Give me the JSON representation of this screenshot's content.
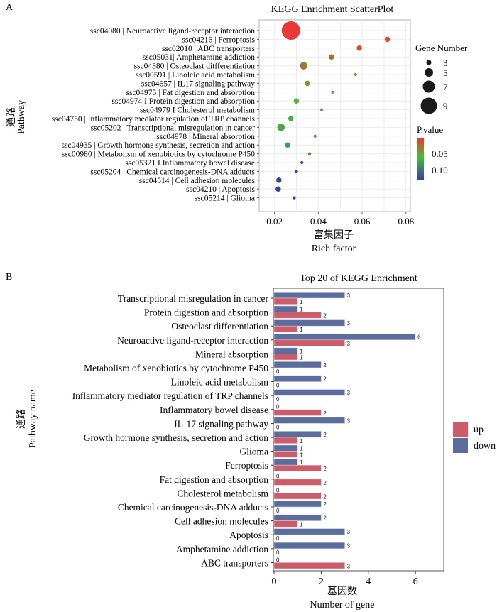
{
  "panels": {
    "a_label": "A",
    "b_label": "B"
  },
  "chart_data": [
    {
      "type": "scatter",
      "title": "KEGG Enrichment ScatterPlot",
      "xlabel_cn": "富集因子",
      "xlabel": "Rich factor",
      "ylabel_cn": "通路",
      "ylabel": "Pathway",
      "xlim": [
        0.013,
        0.082
      ],
      "xticks": [
        0.02,
        0.04,
        0.06,
        0.08
      ],
      "xtick_labels": [
        "0.02",
        "0.04",
        "0.06",
        "0.08"
      ],
      "grid": true,
      "legend_position": "right",
      "size_legend": {
        "title": "Gene Number",
        "values": [
          3,
          5,
          7,
          9
        ],
        "labels": [
          "3",
          "5",
          "7",
          "9"
        ]
      },
      "color_legend": {
        "title": "P.value",
        "labels": [
          "0.05",
          "0.10"
        ],
        "values": [
          0.05,
          0.1
        ],
        "low_color": "#e8383a",
        "mid_color": "#4cb83a",
        "high_color": "#3a3f9a"
      },
      "points": [
        {
          "pathway": "ssc04080 | Neuroactive ligand-receptor interaction",
          "rich_factor": 0.0275,
          "gene_number": 9,
          "pvalue": 0.005
        },
        {
          "pathway": "ssc04216 | Ferroptosis",
          "rich_factor": 0.0715,
          "gene_number": 3,
          "pvalue": 0.01
        },
        {
          "pathway": "ssc02010 | ABC transporters",
          "rich_factor": 0.0587,
          "gene_number": 3,
          "pvalue": 0.015
        },
        {
          "pathway": "ssc05031| Amphetamine addiction",
          "rich_factor": 0.046,
          "gene_number": 3,
          "pvalue": 0.03
        },
        {
          "pathway": "ssc04380 | Osteoclast ditfferentiation",
          "rich_factor": 0.0333,
          "gene_number": 4,
          "pvalue": 0.032
        },
        {
          "pathway": "ssc00591 | Linoleic acid metabolism",
          "rich_factor": 0.057,
          "gene_number": 2,
          "pvalue": 0.045
        },
        {
          "pathway": "ssc04657 | IL17 signaling pathway",
          "rich_factor": 0.035,
          "gene_number": 3,
          "pvalue": 0.048
        },
        {
          "pathway": "ssc04975 | Fat digestion and absorption",
          "rich_factor": 0.0465,
          "gene_number": 2,
          "pvalue": 0.058
        },
        {
          "pathway": "ssc04974 I Protein digestion and absorption",
          "rich_factor": 0.03,
          "gene_number": 3,
          "pvalue": 0.06
        },
        {
          "pathway": "ssc04979 I Cholesterol metabolism",
          "rich_factor": 0.0415,
          "gene_number": 2,
          "pvalue": 0.062
        },
        {
          "pathway": "ssc04750 | Inflammatory mediator regulation of TRP channels",
          "rich_factor": 0.0275,
          "gene_number": 3,
          "pvalue": 0.065
        },
        {
          "pathway": "ssc05202 | Transcriptional misregulation in cancer",
          "rich_factor": 0.023,
          "gene_number": 4,
          "pvalue": 0.066
        },
        {
          "pathway": "ssc04978 | Mineral absorption",
          "rich_factor": 0.0385,
          "gene_number": 2,
          "pvalue": 0.067
        },
        {
          "pathway": "ssc04935 | Growth hormone synthesis, secretion and action",
          "rich_factor": 0.026,
          "gene_number": 3,
          "pvalue": 0.075
        },
        {
          "pathway": "ssc00980 | Metabolism of xenobiotics by cytochrome P450",
          "rich_factor": 0.036,
          "gene_number": 2,
          "pvalue": 0.078
        },
        {
          "pathway": "ssc05321 I Inflammatory bowel disease",
          "rich_factor": 0.0325,
          "gene_number": 2,
          "pvalue": 0.105
        },
        {
          "pathway": "ssc05204 | Chemical carcinogenesis-DNA adducts",
          "rich_factor": 0.03,
          "gene_number": 2,
          "pvalue": 0.108
        },
        {
          "pathway": "ssc04514 | Cell adhesion molecules",
          "rich_factor": 0.022,
          "gene_number": 3,
          "pvalue": 0.11
        },
        {
          "pathway": "ssc04210 | Apoptosis",
          "rich_factor": 0.0217,
          "gene_number": 3,
          "pvalue": 0.112
        },
        {
          "pathway": "ssc05214 | Glioma",
          "rich_factor": 0.029,
          "gene_number": 2,
          "pvalue": 0.112
        }
      ]
    },
    {
      "type": "bar",
      "orientation": "horizontal",
      "title": "Top 20 of KEGG Enrichment",
      "xlabel_cn": "基因数",
      "xlabel": "Number of gene",
      "ylabel_cn": "通路",
      "ylabel": "Pathway name",
      "xlim": [
        0,
        7.2
      ],
      "xticks": [
        0,
        2,
        4,
        6
      ],
      "xtick_labels": [
        "0",
        "2",
        "4",
        "6"
      ],
      "grid": false,
      "legend_position": "right",
      "series": [
        {
          "name": "up",
          "color": "#cd5c6a"
        },
        {
          "name": "down",
          "color": "#5a6d9c"
        }
      ],
      "categories": [
        "Transcriptional misregulation in cancer",
        "Protein digestion and absorption",
        "Osteoclast differentiation",
        "Neuroactive ligand-receptor interaction",
        "Mineral absorption",
        "Metabolism of xenobiotics by cytochrome P450",
        "Linoleic acid metabolism",
        "Inflammatory mediator regulation of TRP channels",
        "Inflammatory bowel disease",
        "IL-17 signaling pathway",
        "Growth hormone synthesis, secretion and action",
        "Glioma",
        "Ferroptosis",
        "Fat digestion and absorption",
        "Cholesterol metabolism",
        "Chemical carcinogenesis-DNA adducts",
        "Cell adhesion molecules",
        "Apoptosis",
        "Amphetamine addiction",
        "ABC transporters"
      ],
      "down": [
        3,
        1,
        3,
        6,
        1,
        2,
        2,
        3,
        0,
        3,
        2,
        1,
        1,
        0,
        0,
        2,
        2,
        3,
        3,
        0
      ],
      "up": [
        1,
        2,
        1,
        3,
        1,
        0,
        0,
        0,
        2,
        0,
        1,
        1,
        2,
        2,
        2,
        0,
        1,
        0,
        0,
        3
      ]
    }
  ]
}
